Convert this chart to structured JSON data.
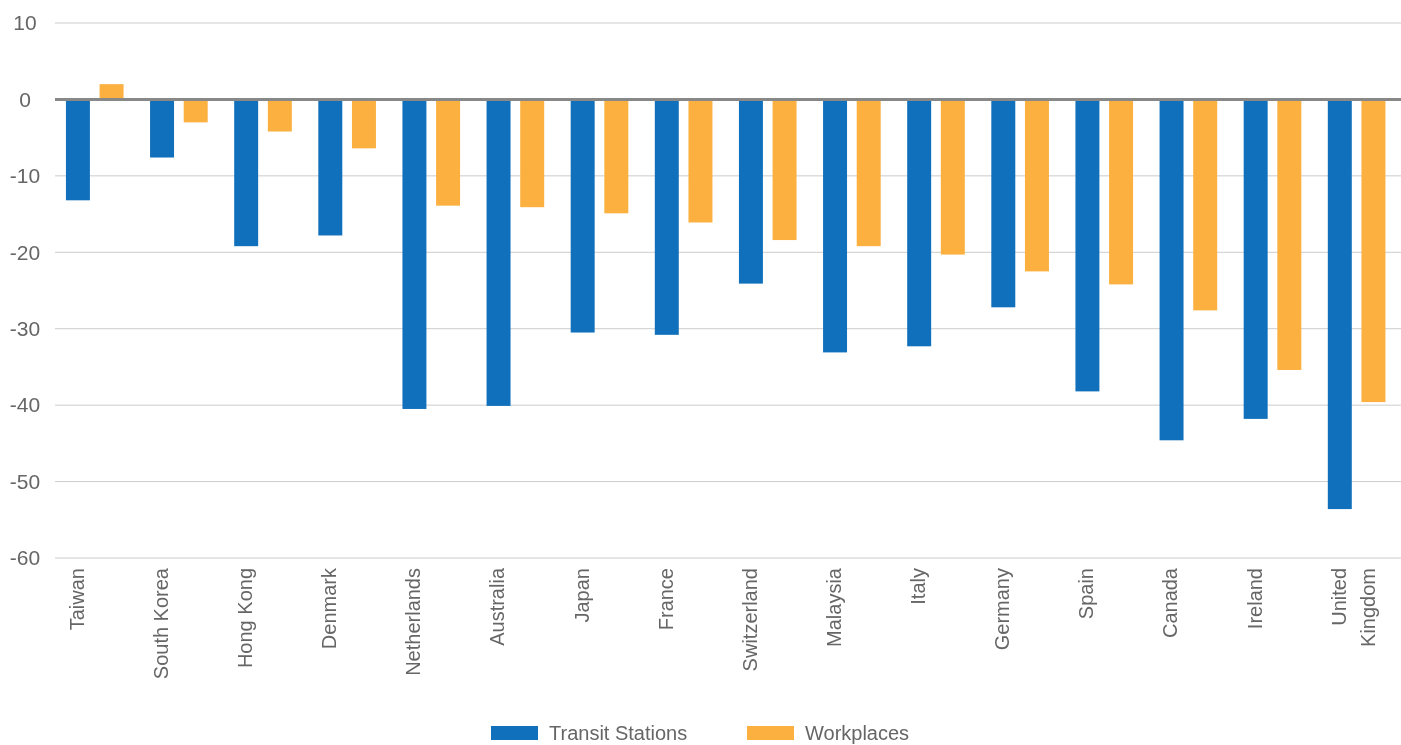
{
  "chart_data": {
    "type": "bar",
    "categories": [
      "Taiwan",
      "South Korea",
      "Hong Kong",
      "Denmark",
      "Netherlands",
      "Australia",
      "Japan",
      "France",
      "Switzerland",
      "Malaysia",
      "Italy",
      "Germany",
      "Spain",
      "Canada",
      "Ireland",
      "United Kingdom"
    ],
    "series": [
      {
        "name": "Transit Stations",
        "color": "#1170bb",
        "values": [
          -13.2,
          -7.6,
          -19.2,
          -17.8,
          -40.5,
          -40.1,
          -30.5,
          -30.8,
          -24.1,
          -33.1,
          -32.3,
          -27.2,
          -38.2,
          -44.6,
          -41.8,
          -53.6
        ]
      },
      {
        "name": "Workplaces",
        "color": "#fbb040",
        "values": [
          2.0,
          -3.0,
          -4.2,
          -6.4,
          -13.9,
          -14.1,
          -14.9,
          -16.1,
          -18.4,
          -19.2,
          -20.3,
          -22.5,
          -24.2,
          -27.6,
          -35.4,
          -39.6
        ]
      }
    ],
    "ylim": [
      -60,
      10
    ],
    "yticks": [
      -60,
      -50,
      -40,
      -30,
      -20,
      -10,
      0,
      10
    ],
    "grid": "y",
    "legend": "bottom"
  }
}
